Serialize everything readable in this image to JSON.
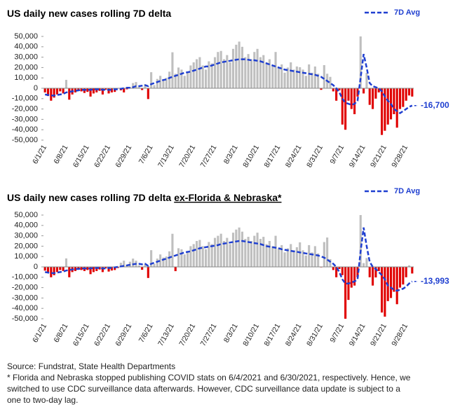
{
  "chart_data": [
    {
      "type": "bar",
      "title": "US daily new cases rolling 7D delta",
      "pos_color": "#bfbfbf",
      "neg_color": "#e00000",
      "ylim": [
        -50000,
        50000
      ],
      "yticks": [
        {
          "value": 50000,
          "label": "50,000"
        },
        {
          "value": 40000,
          "label": "40,000"
        },
        {
          "value": 30000,
          "label": "30,000"
        },
        {
          "value": 20000,
          "label": "20,000"
        },
        {
          "value": 10000,
          "label": "10,000"
        },
        0,
        {
          "value": -10000,
          "label": "-10,000"
        },
        {
          "value": -20000,
          "label": "-20,000"
        },
        {
          "value": -30000,
          "label": "-30,000"
        },
        {
          "value": -40000,
          "label": "-40,000"
        },
        {
          "value": -50000,
          "label": "-50,000"
        }
      ],
      "categories": [
        "6/1/21",
        null,
        null,
        null,
        null,
        null,
        null,
        "6/8/21",
        null,
        null,
        null,
        null,
        null,
        null,
        "6/15/21",
        null,
        null,
        null,
        null,
        null,
        null,
        "6/22/21",
        null,
        null,
        null,
        null,
        null,
        null,
        "6/29/21",
        null,
        null,
        null,
        null,
        null,
        null,
        "7/6/21",
        null,
        null,
        null,
        null,
        null,
        null,
        "7/13/21",
        null,
        null,
        null,
        null,
        null,
        null,
        "7/20/21",
        null,
        null,
        null,
        null,
        null,
        null,
        "7/27/21",
        null,
        null,
        null,
        null,
        null,
        null,
        "8/3/21",
        null,
        null,
        null,
        null,
        null,
        null,
        "8/10/21",
        null,
        null,
        null,
        null,
        null,
        null,
        "8/17/21",
        null,
        null,
        null,
        null,
        null,
        null,
        "8/24/21",
        null,
        null,
        null,
        null,
        null,
        null,
        "8/31/21",
        null,
        null,
        null,
        null,
        null,
        null,
        "9/7/21",
        null,
        null,
        null,
        null,
        null,
        null,
        "9/14/21",
        null,
        null,
        null,
        null,
        null,
        null,
        "9/21/21",
        null,
        null,
        null,
        null,
        null,
        null,
        "9/28/21",
        null,
        null
      ],
      "values": [
        -4000,
        -7500,
        -12000,
        -9000,
        -6000,
        -3000,
        -5000,
        8125,
        -11000,
        -6000,
        -4000,
        -2000,
        -3000,
        -4500,
        -3500,
        -8000,
        -5000,
        -4000,
        -2500,
        -6000,
        -1500,
        -5000,
        -4000,
        -3500,
        -390,
        -2000,
        -4000,
        -1000,
        1373,
        5000,
        6000,
        1200,
        -1706,
        4000,
        -10400,
        15477,
        3000,
        9000,
        12000,
        8000,
        10000,
        16000,
        34709,
        14000,
        20000,
        18000,
        12000,
        15000,
        22000,
        25000,
        28000,
        30000,
        22000,
        18000,
        26000,
        24000,
        30000,
        35000,
        36000,
        28000,
        32000,
        25000,
        38000,
        42000,
        45000,
        40000,
        30000,
        33000,
        28000,
        35000,
        38000,
        30000,
        32000,
        25000,
        28000,
        22000,
        35000,
        20000,
        23000,
        15000,
        20000,
        25000,
        18000,
        21000,
        20334,
        18000,
        12000,
        23000,
        15000,
        21000,
        14000,
        -1495,
        22320,
        14000,
        11000,
        -3000,
        -12000,
        -2000,
        -35000,
        -40000,
        -12000,
        -20000,
        -25000,
        -8000,
        50000,
        -5000,
        14870,
        -16000,
        -20000,
        -10000,
        -4000,
        -45000,
        -41000,
        -35000,
        -30000,
        -25000,
        -38000,
        -20000,
        -18000,
        -12000,
        -6947,
        -8000
      ],
      "line": {
        "name": "7D Avg",
        "color": "#1f3fd0",
        "values": [
          -6000,
          -6500,
          -7000,
          -7000,
          -6500,
          -6000,
          -5500,
          -4000,
          -3500,
          -3000,
          -2500,
          -2000,
          -1500,
          -1500,
          -1500,
          -1500,
          -1000,
          -1000,
          -1000,
          -1500,
          -1500,
          -1500,
          -1500,
          -1000,
          -1000,
          -500,
          0,
          500,
          500,
          1000,
          2000,
          2000,
          2500,
          3000,
          2000,
          4000,
          5000,
          6000,
          7000,
          8000,
          8500,
          10000,
          11000,
          12000,
          13000,
          14000,
          15000,
          15500,
          16000,
          17000,
          18000,
          19000,
          20000,
          21000,
          21000,
          22000,
          23000,
          24000,
          25000,
          25500,
          26000,
          26500,
          27000,
          27500,
          28000,
          28000,
          28000,
          27500,
          27000,
          27000,
          26500,
          26000,
          25000,
          24000,
          23000,
          22000,
          21000,
          20000,
          19000,
          18000,
          17500,
          17000,
          16500,
          16000,
          15500,
          15000,
          14500,
          14000,
          13500,
          13000,
          12000,
          11000,
          9000,
          7000,
          5000,
          3000,
          0,
          -4000,
          -10000,
          -14000,
          -15000,
          -16000,
          -15000,
          -12000,
          10000,
          33000,
          20000,
          5000,
          2000,
          1000,
          0,
          -3000,
          -8000,
          -12000,
          -15000,
          -20000,
          -22000,
          -24000,
          -22000,
          -20000,
          -18000,
          -16700
        ]
      },
      "end_label": "-16,700"
    },
    {
      "type": "bar",
      "title": "US daily new cases rolling 7D delta",
      "title_underlined": "ex-Florida & Nebraska*",
      "pos_color": "#bfbfbf",
      "neg_color": "#e00000",
      "ylim": [
        -50000,
        50000
      ],
      "yticks": [
        {
          "value": 50000,
          "label": "50,000"
        },
        {
          "value": 40000,
          "label": "40,000"
        },
        {
          "value": 30000,
          "label": "30,000"
        },
        {
          "value": 20000,
          "label": "20,000"
        },
        {
          "value": 10000,
          "label": "10,000"
        },
        0,
        {
          "value": -10000,
          "label": "-10,000"
        },
        {
          "value": -20000,
          "label": "-20,000"
        },
        {
          "value": -30000,
          "label": "-30,000"
        },
        {
          "value": -40000,
          "label": "-40,000"
        },
        {
          "value": -50000,
          "label": "-50,000"
        }
      ],
      "categories": [
        "6/1/21",
        null,
        null,
        null,
        null,
        null,
        null,
        "6/8/21",
        null,
        null,
        null,
        null,
        null,
        null,
        "6/15/21",
        null,
        null,
        null,
        null,
        null,
        null,
        "6/22/21",
        null,
        null,
        null,
        null,
        null,
        null,
        "6/29/21",
        null,
        null,
        null,
        null,
        null,
        null,
        "7/6/21",
        null,
        null,
        null,
        null,
        null,
        null,
        "7/13/21",
        null,
        null,
        null,
        null,
        null,
        null,
        "7/20/21",
        null,
        null,
        null,
        null,
        null,
        null,
        "7/27/21",
        null,
        null,
        null,
        null,
        null,
        null,
        "8/3/21",
        null,
        null,
        null,
        null,
        null,
        null,
        "8/10/21",
        null,
        null,
        null,
        null,
        null,
        null,
        "8/17/21",
        null,
        null,
        null,
        null,
        null,
        null,
        "8/24/21",
        null,
        null,
        null,
        null,
        null,
        null,
        "8/31/21",
        null,
        null,
        null,
        null,
        null,
        null,
        "9/7/21",
        null,
        null,
        null,
        null,
        null,
        null,
        "9/14/21",
        null,
        null,
        null,
        null,
        null,
        null,
        "9/21/21",
        null,
        null,
        null,
        null,
        null,
        null,
        "9/28/21",
        null,
        null
      ],
      "values": [
        -3598,
        -6000,
        -10000,
        -8000,
        -5000,
        -3000,
        -4000,
        8189,
        -10000,
        -5000,
        -4000,
        -2000,
        -3000,
        -4000,
        -3000,
        -7000,
        -5000,
        -4000,
        -2500,
        -5000,
        -1500,
        -4500,
        -3500,
        -3000,
        -1095,
        4000,
        6000,
        2000,
        5000,
        8000,
        6000,
        1500,
        -2795,
        3000,
        -10677,
        16126,
        3000,
        8000,
        12000,
        9000,
        10000,
        15000,
        31939,
        -4098,
        18000,
        17000,
        12000,
        14000,
        20000,
        22000,
        25000,
        26000,
        20000,
        17000,
        24000,
        22000,
        28000,
        30000,
        32000,
        25000,
        28000,
        22000,
        33000,
        36000,
        38000,
        34000,
        27000,
        29000,
        25000,
        30000,
        33000,
        27000,
        29000,
        22000,
        25000,
        20000,
        30000,
        18000,
        21000,
        14000,
        18000,
        22000,
        16000,
        19000,
        23670,
        16000,
        11000,
        21000,
        14000,
        20000,
        13000,
        -497,
        23955,
        28349,
        7478,
        -3000,
        -10000,
        -2000,
        -7948,
        -50000,
        -31849,
        -20000,
        -18000,
        -10000,
        50000,
        3664,
        8541,
        -10000,
        -18000,
        -10173,
        -4000,
        -44000,
        -48000,
        -33000,
        -30000,
        -24000,
        -36000,
        -20000,
        -17000,
        -10000,
        1515,
        -6376
      ],
      "line": {
        "name": "7D Avg",
        "color": "#1f3fd0",
        "values": [
          -5000,
          -5500,
          -6000,
          -6000,
          -5500,
          -5000,
          -4500,
          -3500,
          -3000,
          -2500,
          -2000,
          -2000,
          -1500,
          -1500,
          -1500,
          -1500,
          -1000,
          -1000,
          -1000,
          -1500,
          -1500,
          -1000,
          -1000,
          -500,
          0,
          500,
          1000,
          1500,
          2000,
          2500,
          3000,
          3000,
          2500,
          3000,
          1000,
          3000,
          4000,
          5000,
          6000,
          7000,
          8000,
          9000,
          10000,
          11000,
          12000,
          13000,
          14000,
          14500,
          15000,
          16000,
          17000,
          18000,
          18500,
          19000,
          19500,
          20000,
          20500,
          21000,
          22000,
          22500,
          23000,
          23500,
          24000,
          24500,
          25000,
          25000,
          24500,
          24000,
          23500,
          23000,
          22500,
          22000,
          21000,
          20000,
          19500,
          19000,
          18500,
          18000,
          17000,
          16500,
          16000,
          15500,
          15000,
          14500,
          14000,
          13500,
          13000,
          12500,
          12000,
          11500,
          11000,
          10000,
          9000,
          7000,
          5000,
          3000,
          0,
          -5000,
          -12000,
          -16000,
          -16000,
          -15000,
          -14000,
          -12000,
          15000,
          38000,
          20000,
          5000,
          0,
          -2000,
          -5000,
          -8000,
          -12000,
          -18000,
          -20000,
          -22000,
          -23000,
          -22000,
          -21000,
          -19000,
          -16000,
          -13993
        ]
      },
      "end_label": "-13,993"
    }
  ],
  "footer": {
    "lines": [
      "Source: Fundstrat, State Health Departments",
      "* Florida and Nebraska  stopped publishing COVID stats on 6/4/2021 and 6/30/2021, respectively. Hence, we",
      "switched to use CDC surveillance data afterwards. However, CDC surveillance data update is subject to a",
      "one to two-day lag."
    ]
  }
}
